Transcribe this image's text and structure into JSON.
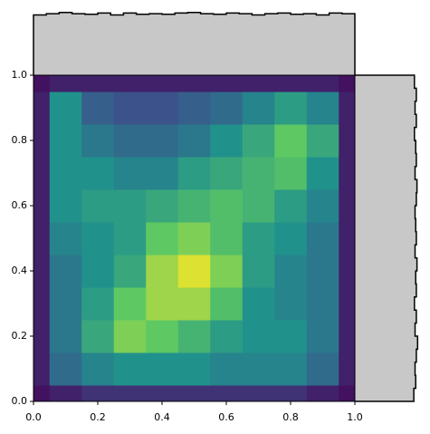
{
  "chart_data": {
    "type": "kde2d",
    "colormap": "viridis",
    "x": [
      0,
      0.1,
      0.2,
      0.3,
      0.4,
      0.5,
      0.6,
      0.7,
      0.8,
      0.9,
      1
    ],
    "y": [
      0,
      0.1,
      0.2,
      0.3,
      0.4,
      0.5,
      0.6,
      0.7,
      0.8,
      0.9,
      1
    ],
    "z": [
      [
        0.05,
        0.1,
        0.15,
        0.15,
        0.15,
        0.15,
        0.15,
        0.15,
        0.15,
        0.1,
        0.05
      ],
      [
        0.1,
        0.35,
        0.45,
        0.5,
        0.5,
        0.5,
        0.45,
        0.45,
        0.45,
        0.35,
        0.1
      ],
      [
        0.1,
        0.4,
        0.6,
        0.8,
        0.75,
        0.65,
        0.55,
        0.5,
        0.5,
        0.4,
        0.1
      ],
      [
        0.1,
        0.4,
        0.55,
        0.75,
        0.85,
        0.85,
        0.7,
        0.5,
        0.45,
        0.4,
        0.1
      ],
      [
        0.1,
        0.4,
        0.5,
        0.6,
        0.85,
        0.95,
        0.8,
        0.55,
        0.45,
        0.4,
        0.1
      ],
      [
        0.1,
        0.45,
        0.5,
        0.55,
        0.75,
        0.8,
        0.7,
        0.55,
        0.5,
        0.4,
        0.1
      ],
      [
        0.1,
        0.5,
        0.55,
        0.55,
        0.6,
        0.65,
        0.7,
        0.65,
        0.55,
        0.45,
        0.1
      ],
      [
        0.1,
        0.5,
        0.5,
        0.45,
        0.45,
        0.55,
        0.6,
        0.65,
        0.7,
        0.5,
        0.1
      ],
      [
        0.1,
        0.5,
        0.4,
        0.35,
        0.35,
        0.4,
        0.5,
        0.6,
        0.75,
        0.6,
        0.1
      ],
      [
        0.1,
        0.5,
        0.3,
        0.25,
        0.25,
        0.3,
        0.35,
        0.45,
        0.55,
        0.45,
        0.1
      ],
      [
        0.05,
        0.1,
        0.1,
        0.1,
        0.1,
        0.1,
        0.1,
        0.1,
        0.1,
        0.1,
        0.05
      ]
    ],
    "zlim": [
      0,
      1
    ],
    "xlim": [
      0,
      1
    ],
    "ylim": [
      0,
      1
    ],
    "xticks": [
      {
        "value": 0,
        "label": "0.0"
      },
      0.2,
      0.4,
      0.6,
      0.8,
      {
        "value": 1,
        "label": "1.0"
      }
    ],
    "yticks": [
      {
        "value": 0,
        "label": "0.0"
      },
      0.2,
      0.4,
      0.6,
      0.8,
      {
        "value": 1,
        "label": "1.0"
      }
    ],
    "hist_color": "#c8c8c8",
    "top_hist": {
      "bins": [
        0,
        0.04,
        0.08,
        0.12,
        0.16,
        0.2,
        0.24,
        0.28,
        0.32,
        0.36,
        0.4,
        0.44,
        0.48,
        0.52,
        0.56,
        0.6,
        0.64,
        0.68,
        0.72,
        0.76,
        0.8,
        0.84,
        0.88,
        0.92,
        0.96,
        1
      ],
      "counts": [
        95,
        97,
        99,
        97,
        96,
        98,
        95,
        98,
        96,
        97,
        96,
        98,
        99,
        97,
        96,
        98,
        97,
        95,
        97,
        98,
        96,
        97,
        95,
        98,
        97
      ],
      "lim": [
        0,
        100
      ]
    },
    "right_hist": {
      "bins": [
        0,
        0.04,
        0.08,
        0.12,
        0.16,
        0.2,
        0.24,
        0.28,
        0.32,
        0.36,
        0.4,
        0.44,
        0.48,
        0.52,
        0.56,
        0.6,
        0.64,
        0.68,
        0.72,
        0.76,
        0.8,
        0.84,
        0.88,
        0.92,
        0.96,
        1
      ],
      "counts": [
        93,
        96,
        95,
        97,
        99,
        95,
        97,
        94,
        97,
        96,
        98,
        95,
        97,
        96,
        95,
        97,
        98,
        95,
        97,
        96,
        94,
        97,
        95,
        97,
        94
      ],
      "lim": [
        0,
        100
      ]
    }
  }
}
